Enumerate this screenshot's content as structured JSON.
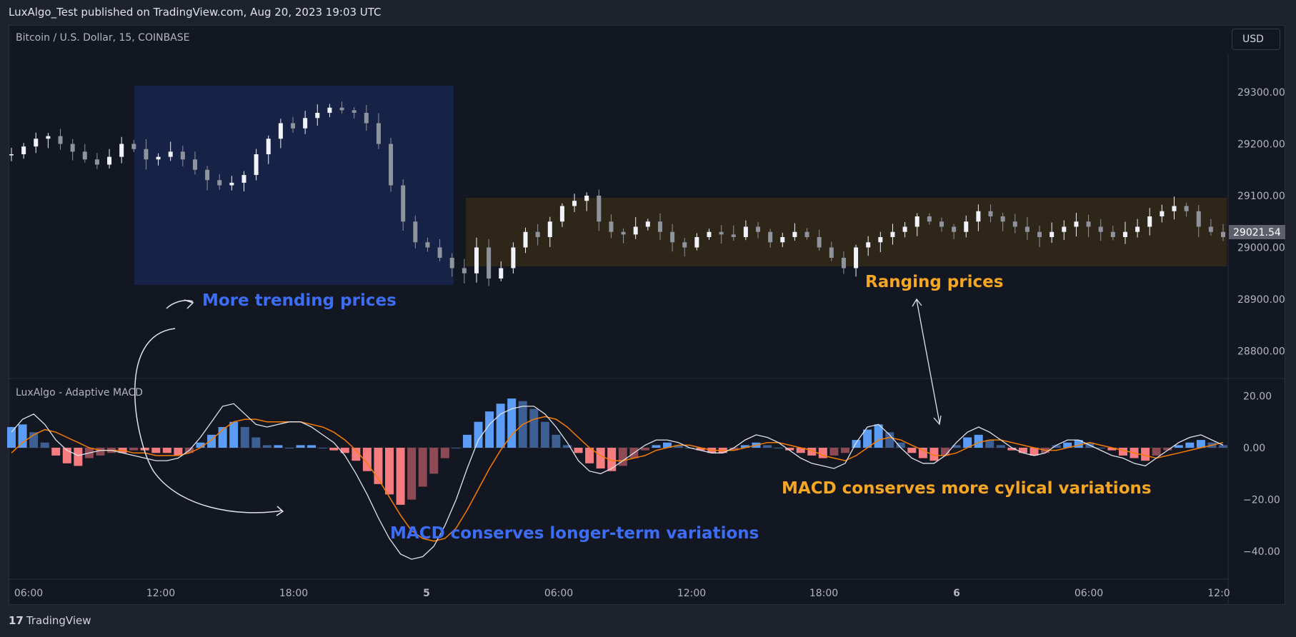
{
  "header": {
    "published": "LuxAlgo_Test published on TradingView.com, Aug 20, 2023 19:03 UTC",
    "symbol": "Bitcoin / U.S. Dollar, 15, COINBASE",
    "currency": "USD",
    "indicator": "LuxAlgo - Adaptive MACD"
  },
  "footer": {
    "brand": "TradingView",
    "logo": "tradingview-logo-icon"
  },
  "annotations": {
    "trending": "More trending prices",
    "ranging": "Ranging prices",
    "longer": "MACD conserves longer-term variations",
    "cyclical": "MACD conserves more cylical variations"
  },
  "colors": {
    "trend_label": "#3d6cf5",
    "range_label": "#f5a623",
    "trend_box": "#162246",
    "range_box": "#2e2619",
    "hist_pos": "#5b9cf6",
    "hist_neg": "#f77c80",
    "macd_line": "#e0e3eb",
    "signal_line": "#f57c00"
  },
  "chart_data": [
    {
      "type": "candlestick",
      "title": "Bitcoin / U.S. Dollar, 15, COINBASE",
      "price_axis_ticks": [
        "29300.00",
        "29200.00",
        "29100.00",
        "29000.00",
        "28900.00",
        "28800.00"
      ],
      "price_axis_values": [
        29300,
        29200,
        29100,
        29000,
        28900,
        28800
      ],
      "last_price": "29021.54",
      "time_axis_ticks": [
        "06:00",
        "12:00",
        "18:00",
        "5",
        "06:00",
        "12:00",
        "18:00",
        "6",
        "06:00",
        "12:0"
      ],
      "close_series": [
        29180,
        29195,
        29210,
        29215,
        29200,
        29185,
        29170,
        29160,
        29175,
        29200,
        29190,
        29170,
        29175,
        29185,
        29170,
        29150,
        29130,
        29120,
        29125,
        29140,
        29180,
        29210,
        29240,
        29230,
        29250,
        29260,
        29270,
        29265,
        29260,
        29240,
        29200,
        29120,
        29050,
        29010,
        29000,
        28980,
        28960,
        28950,
        29000,
        28940,
        28960,
        29000,
        29030,
        29020,
        29050,
        29080,
        29090,
        29100,
        29050,
        29030,
        29025,
        29040,
        29050,
        29030,
        29010,
        29000,
        29020,
        29030,
        29025,
        29020,
        29040,
        29030,
        29010,
        29020,
        29030,
        29020,
        29000,
        28980,
        28960,
        29000,
        29010,
        29020,
        29030,
        29040,
        29060,
        29050,
        29040,
        29030,
        29050,
        29070,
        29060,
        29050,
        29040,
        29030,
        29020,
        29030,
        29040,
        29050,
        29040,
        29030,
        29020,
        29030,
        29040,
        29060,
        29070,
        29080,
        29070,
        29040,
        29030,
        29020
      ]
    },
    {
      "type": "bar",
      "title": "LuxAlgo - Adaptive MACD",
      "axis_ticks": [
        "20.00",
        "0.00",
        "−20.00",
        "−40.00"
      ],
      "axis_values": [
        20,
        0,
        -20,
        -40
      ],
      "histogram": [
        8,
        9,
        6,
        2,
        -3,
        -6,
        -7,
        -4,
        -3,
        -2,
        -2,
        -1,
        -1,
        -2,
        -2,
        -3,
        -2,
        2,
        5,
        8,
        10,
        8,
        4,
        1,
        1,
        0,
        1,
        1,
        0,
        -1,
        -2,
        -5,
        -9,
        -14,
        -18,
        -22,
        -20,
        -15,
        -10,
        -4,
        0,
        5,
        10,
        14,
        17,
        19,
        18,
        15,
        10,
        5,
        1,
        -2,
        -6,
        -8,
        -9,
        -7,
        -4,
        -1,
        1,
        2,
        1,
        0,
        -1,
        -2,
        -2,
        -1,
        1,
        2,
        1,
        0,
        -1,
        -2,
        -3,
        -4,
        -3,
        -2,
        3,
        7,
        9,
        6,
        2,
        -2,
        -4,
        -5,
        -3,
        1,
        4,
        5,
        3,
        1,
        -1,
        -2,
        -3,
        -2,
        1,
        2,
        3,
        2,
        0,
        -1,
        -3,
        -4,
        -5,
        -3,
        -1,
        1,
        2,
        3,
        2,
        1
      ],
      "macd_line": [
        6,
        11,
        13,
        9,
        3,
        -1,
        -3,
        -2,
        -1,
        -1,
        -2,
        -3,
        -4,
        -5,
        -5,
        -4,
        -1,
        4,
        10,
        16,
        17,
        13,
        9,
        8,
        9,
        10,
        10,
        8,
        5,
        2,
        -3,
        -10,
        -18,
        -27,
        -35,
        -41,
        -43,
        -42,
        -38,
        -30,
        -20,
        -8,
        3,
        9,
        13,
        15,
        16,
        16,
        13,
        8,
        2,
        -5,
        -9,
        -10,
        -8,
        -5,
        -2,
        1,
        3,
        3,
        2,
        0,
        -1,
        -2,
        -2,
        0,
        3,
        5,
        4,
        2,
        -1,
        -4,
        -6,
        -7,
        -8,
        -6,
        2,
        8,
        9,
        5,
        0,
        -4,
        -6,
        -6,
        -3,
        2,
        6,
        8,
        6,
        3,
        0,
        -2,
        -3,
        -2,
        1,
        3,
        3,
        1,
        -1,
        -3,
        -4,
        -6,
        -7,
        -4,
        -1,
        2,
        4,
        5,
        3,
        1
      ],
      "signal_line": [
        -2,
        2,
        5,
        7,
        6,
        4,
        2,
        0,
        -1,
        -1,
        -1,
        -2,
        -2,
        -3,
        -3,
        -3,
        -2,
        0,
        3,
        7,
        10,
        11,
        11,
        10,
        10,
        10,
        10,
        9,
        8,
        6,
        3,
        -1,
        -6,
        -12,
        -19,
        -26,
        -32,
        -35,
        -36,
        -35,
        -31,
        -24,
        -16,
        -8,
        -1,
        5,
        9,
        11,
        12,
        11,
        8,
        4,
        0,
        -3,
        -5,
        -5,
        -4,
        -3,
        -1,
        0,
        1,
        1,
        0,
        -1,
        -1,
        -1,
        0,
        1,
        2,
        2,
        1,
        0,
        -1,
        -3,
        -4,
        -5,
        -3,
        0,
        3,
        4,
        3,
        1,
        -1,
        -3,
        -3,
        -2,
        0,
        2,
        3,
        3,
        2,
        1,
        0,
        -1,
        -1,
        0,
        1,
        2,
        1,
        0,
        -1,
        -2,
        -3,
        -4,
        -3,
        -2,
        -1,
        0,
        1,
        2
      ]
    }
  ]
}
